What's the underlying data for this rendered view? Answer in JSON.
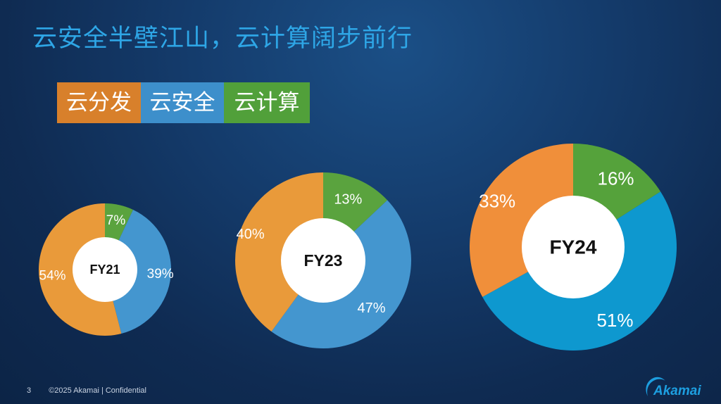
{
  "slide": {
    "title": "云安全半壁江山，云计算阔步前行",
    "page_number": "3",
    "footer_text": "©2025 Akamai | Confidential",
    "logo_text": "Akamai"
  },
  "legend": [
    {
      "label": "云分发",
      "color": "#d8802b"
    },
    {
      "label": "云安全",
      "color": "#3d8fcb"
    },
    {
      "label": "云计算",
      "color": "#51a03a"
    }
  ],
  "chart_data": [
    {
      "type": "pie",
      "center_label": "FY21",
      "slices": [
        {
          "category": "云计算",
          "value": 7,
          "label": "7%",
          "color": "#5aa33e"
        },
        {
          "category": "云安全",
          "value": 39,
          "label": "39%",
          "color": "#4496cf"
        },
        {
          "category": "云分发",
          "value": 54,
          "label": "54%",
          "color": "#e99a3a"
        }
      ]
    },
    {
      "type": "pie",
      "center_label": "FY23",
      "slices": [
        {
          "category": "云计算",
          "value": 13,
          "label": "13%",
          "color": "#5aa33e"
        },
        {
          "category": "云安全",
          "value": 47,
          "label": "47%",
          "color": "#4496cf"
        },
        {
          "category": "云分发",
          "value": 40,
          "label": "40%",
          "color": "#e99a3a"
        }
      ]
    },
    {
      "type": "pie",
      "center_label": "FY24",
      "slices": [
        {
          "category": "云计算",
          "value": 16,
          "label": "16%",
          "color": "#55a23b"
        },
        {
          "category": "云安全",
          "value": 51,
          "label": "51%",
          "color": "#0e98cf"
        },
        {
          "category": "云分发",
          "value": 33,
          "label": "33%",
          "color": "#f08f3a"
        }
      ]
    }
  ]
}
